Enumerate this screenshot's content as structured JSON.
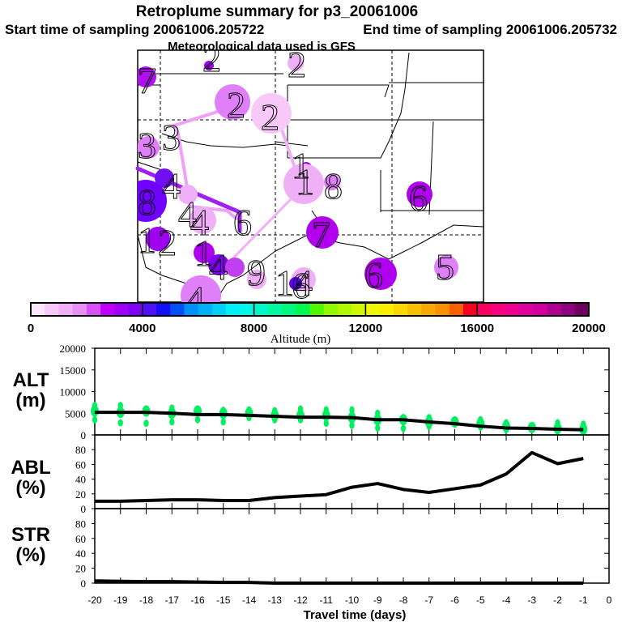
{
  "header": {
    "title": "Retroplume summary for p3_20061006",
    "start": "Start time of sampling 20061006.205722",
    "end": "End time of sampling 20061006.205732",
    "met": "Meteorological data used is GFS"
  },
  "map": {
    "markers": [
      "7",
      "2",
      "2",
      "2",
      "2",
      "3",
      "3",
      "4",
      "8",
      "4",
      "4",
      "6",
      "1",
      "1",
      "8",
      "6",
      "7",
      "1",
      "2",
      "1",
      "4",
      "9",
      "6",
      "5",
      "14",
      "6",
      "4"
    ]
  },
  "colorbar": {
    "labels": [
      "0",
      "4000",
      "8000",
      "12000",
      "16000",
      "20000"
    ],
    "title": "Altitude (m)",
    "colors": [
      "#fde6fc",
      "#f8c8f8",
      "#f0b0f8",
      "#e890f8",
      "#d850f8",
      "#c000f8",
      "#a000f8",
      "#8000f8",
      "#5010f8",
      "#1010f8",
      "#0050f8",
      "#0090f8",
      "#00b0f8",
      "#00d0f8",
      "#00f0f8",
      "#00f8e8",
      "#00f8c8",
      "#00f8a0",
      "#00f880",
      "#00f850",
      "#50f800",
      "#90f800",
      "#b0f800",
      "#d0f800",
      "#f0f800",
      "#f8f000",
      "#f8d800",
      "#f8c000",
      "#f8a800",
      "#f89000",
      "#f86000",
      "#f80020",
      "#f80060",
      "#f80080",
      "#f00090",
      "#e000a0",
      "#d000a0",
      "#b00090",
      "#900080",
      "#700060"
    ]
  },
  "chart_data": [
    {
      "type": "line",
      "title": "ALT",
      "ylabel": "ALT (m)",
      "ylim": [
        0,
        20000
      ],
      "yticks": [
        "0",
        "5000",
        "10000",
        "15000",
        "20000"
      ],
      "x": [
        -20,
        -19,
        -18,
        -17,
        -16,
        -15,
        -14,
        -13,
        -12,
        -11,
        -10,
        -9,
        -8,
        -7,
        -6,
        -5,
        -4,
        -3,
        -2,
        -1
      ],
      "values": [
        5200,
        5200,
        5200,
        5000,
        4700,
        4700,
        4500,
        4300,
        4100,
        4100,
        4000,
        3500,
        3500,
        3000,
        2600,
        2000,
        1600,
        1500,
        1300,
        1200
      ],
      "scatter_color": "#00f060",
      "scatter": [
        [
          3500,
          5500,
          6800
        ],
        [
          2800,
          5200,
          6800
        ],
        [
          2700,
          5500,
          6000
        ],
        [
          3000,
          5000,
          6200
        ],
        [
          3500,
          5500,
          6000
        ],
        [
          3000,
          5000,
          5700
        ],
        [
          4000,
          5000,
          5800
        ],
        [
          3500,
          4500,
          5600
        ],
        [
          3500,
          4500,
          6000
        ],
        [
          2700,
          4500,
          5800
        ],
        [
          2200,
          4000,
          5800
        ],
        [
          1600,
          3500,
          5000
        ],
        [
          1500,
          3500,
          4000
        ],
        [
          2000,
          3000,
          4000
        ],
        [
          2500,
          3000,
          3500
        ],
        [
          1800,
          2600,
          3500
        ],
        [
          1200,
          2000,
          2800
        ],
        [
          1300,
          1700,
          2000
        ],
        [
          900,
          1500,
          2800
        ],
        [
          800,
          1300,
          2500
        ]
      ]
    },
    {
      "type": "line",
      "title": "ABL",
      "ylabel": "ABL (%)",
      "ylim": [
        0,
        100
      ],
      "yticks": [
        "0",
        "20",
        "40",
        "60",
        "80"
      ],
      "x": [
        -20,
        -19,
        -18,
        -17,
        -16,
        -15,
        -14,
        -13,
        -12,
        -11,
        -10,
        -9,
        -8,
        -7,
        -6,
        -5,
        -4,
        -3,
        -2,
        -1
      ],
      "values": [
        10,
        10,
        11,
        12,
        12,
        11,
        11,
        15,
        17,
        19,
        29,
        34,
        26,
        22,
        27,
        32,
        47,
        76,
        61,
        68
      ]
    },
    {
      "type": "line",
      "title": "STR",
      "ylabel": "STR (%)",
      "ylim": [
        0,
        100
      ],
      "yticks": [
        "0",
        "20",
        "40",
        "60",
        "80"
      ],
      "x": [
        -20,
        -19,
        -18,
        -17,
        -16,
        -15,
        -14,
        -13,
        -12,
        -11,
        -10,
        -9,
        -8,
        -7,
        -6,
        -5,
        -4,
        -3,
        -2,
        -1
      ],
      "values": [
        3,
        2.5,
        2,
        2,
        1.5,
        1,
        1,
        0,
        0,
        0,
        0,
        0,
        0,
        0,
        0,
        0,
        0,
        0,
        0,
        0
      ]
    }
  ],
  "panels": {
    "alt_label": "ALT",
    "alt_unit": "(m)",
    "abl_label": "ABL",
    "abl_unit": "(%)",
    "str_label": "STR",
    "str_unit": "(%)"
  },
  "xaxis": {
    "ticks": [
      "-20",
      "-19",
      "-18",
      "-17",
      "-16",
      "-15",
      "-14",
      "-13",
      "-12",
      "-11",
      "-10",
      "-9",
      "-8",
      "-7",
      "-6",
      "-5",
      "-4",
      "-3",
      "-2",
      "-1",
      "0"
    ],
    "title": "Travel time (days)"
  }
}
